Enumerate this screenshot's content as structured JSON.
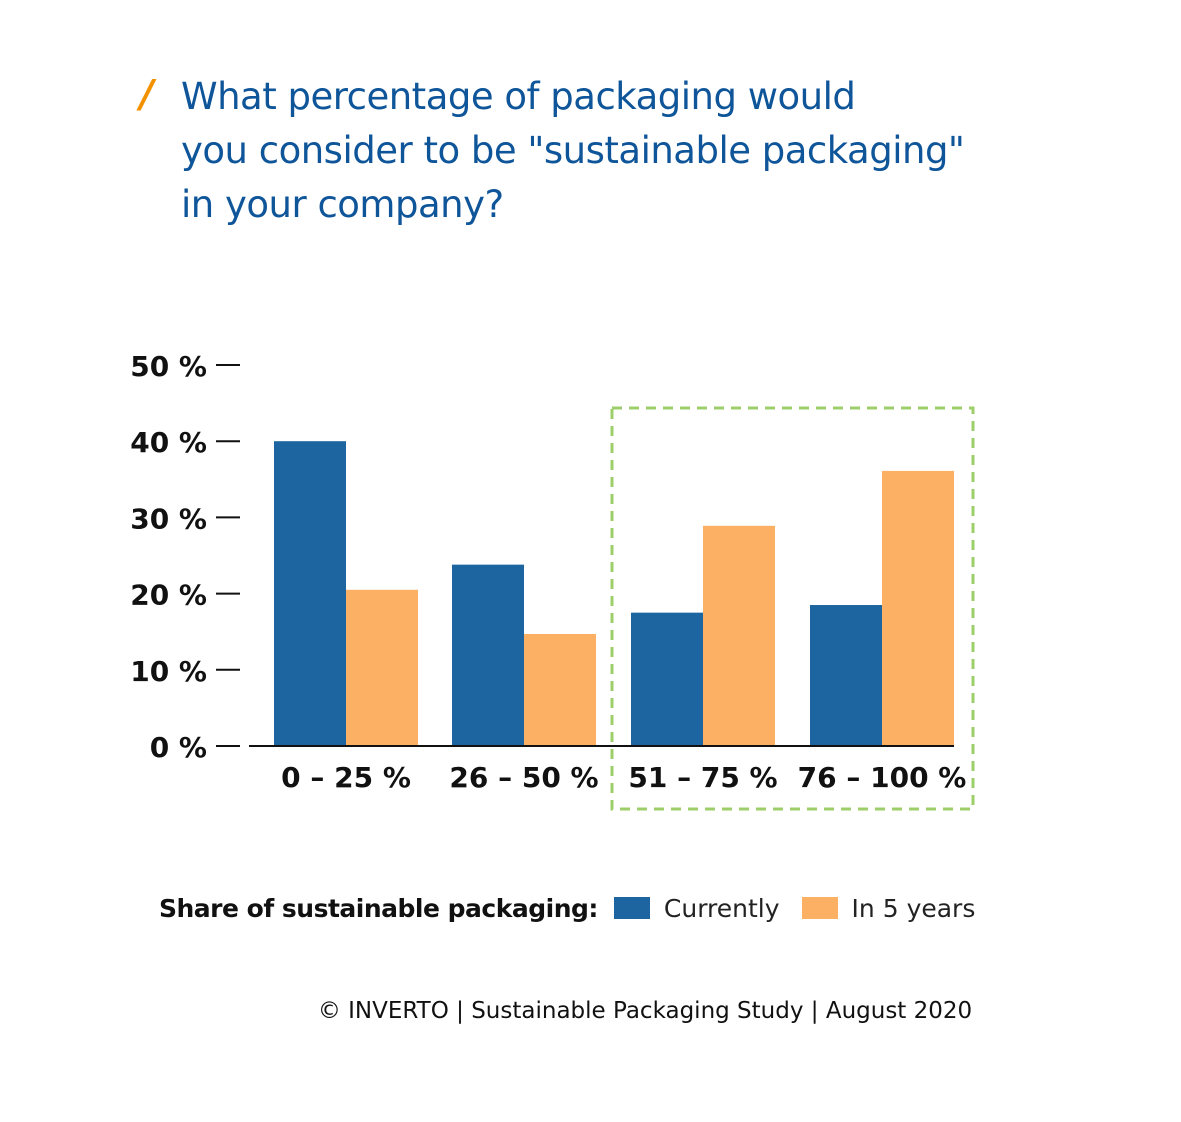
{
  "header": {
    "title_lines": [
      "What percentage of packaging would",
      "you consider to be \"sustainable packaging\"",
      "in your company?"
    ]
  },
  "legend": {
    "label": "Share of sustainable packaging:",
    "items": [
      {
        "name": "Currently",
        "color": "#1c65a0"
      },
      {
        "name": "In 5 years",
        "color": "#fbb063"
      }
    ]
  },
  "footer": "© INVERTO | Sustainable Packaging Study | August 2020",
  "colors": {
    "title": "#0f5599",
    "accent_slash": "#f39200",
    "highlight_box": "#9ccf6a"
  },
  "chart_data": {
    "type": "bar",
    "categories": [
      "0 – 25 %",
      "26 – 50 %",
      "51 – 75 %",
      "76 – 100 %"
    ],
    "series": [
      {
        "name": "Currently",
        "values": [
          40.0,
          23.8,
          17.5,
          18.5
        ]
      },
      {
        "name": "In 5 years",
        "values": [
          20.5,
          14.7,
          28.9,
          36.1
        ]
      }
    ],
    "yticks": [
      "0 %",
      "10 %",
      "20 %",
      "30 %",
      "40 %",
      "50 %"
    ],
    "ylim": [
      0,
      50
    ],
    "grid": false,
    "highlighted_categories": [
      "51 – 75 %",
      "76 – 100 %"
    ],
    "legend_position": "bottom"
  }
}
